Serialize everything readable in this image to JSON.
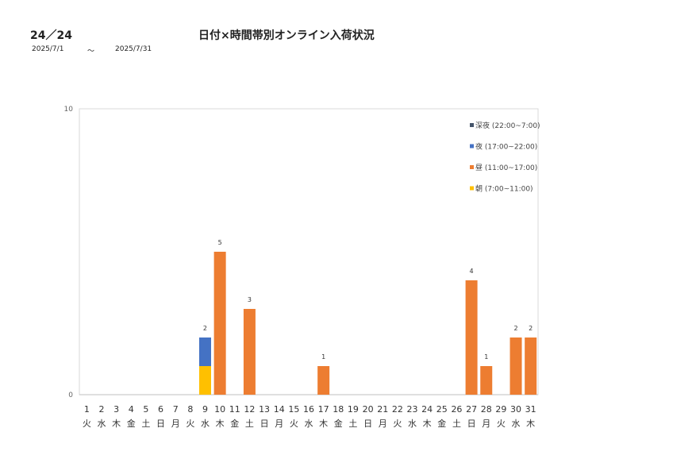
{
  "header": {
    "code": "24／24",
    "title": "日付×時間帯別オンライン入荷状況",
    "date_from": "2025/7/1",
    "tilde": "～",
    "date_to": "2025/7/31"
  },
  "chart_data": {
    "type": "bar",
    "stacked": true,
    "ylim": [
      0,
      10
    ],
    "y_ticks": [
      "0",
      "10"
    ],
    "categories": [
      "1",
      "2",
      "3",
      "4",
      "5",
      "6",
      "7",
      "8",
      "9",
      "10",
      "11",
      "12",
      "13",
      "14",
      "15",
      "16",
      "17",
      "18",
      "19",
      "20",
      "21",
      "22",
      "23",
      "24",
      "25",
      "26",
      "27",
      "28",
      "29",
      "30",
      "31"
    ],
    "weekdays": [
      "火",
      "水",
      "木",
      "金",
      "土",
      "日",
      "月",
      "火",
      "水",
      "木",
      "金",
      "土",
      "日",
      "月",
      "火",
      "水",
      "木",
      "金",
      "土",
      "日",
      "月",
      "火",
      "水",
      "木",
      "金",
      "土",
      "日",
      "月",
      "火",
      "水",
      "木"
    ],
    "series": [
      {
        "name": "朝 (7:00~11:00)",
        "color": "#FFC000",
        "values": [
          0,
          0,
          0,
          0,
          0,
          0,
          0,
          0,
          1,
          0,
          0,
          0,
          0,
          0,
          0,
          0,
          0,
          0,
          0,
          0,
          0,
          0,
          0,
          0,
          0,
          0,
          0,
          0,
          0,
          0,
          0
        ]
      },
      {
        "name": "昼 (11:00~17:00)",
        "color": "#ED7D31",
        "values": [
          0,
          0,
          0,
          0,
          0,
          0,
          0,
          0,
          0,
          5,
          0,
          3,
          0,
          0,
          0,
          0,
          1,
          0,
          0,
          0,
          0,
          0,
          0,
          0,
          0,
          0,
          4,
          1,
          0,
          2,
          2
        ]
      },
      {
        "name": "夜 (17:00~22:00)",
        "color": "#4472C4",
        "values": [
          0,
          0,
          0,
          0,
          0,
          0,
          0,
          0,
          1,
          0,
          0,
          0,
          0,
          0,
          0,
          0,
          0,
          0,
          0,
          0,
          0,
          0,
          0,
          0,
          0,
          0,
          0,
          0,
          0,
          0,
          0
        ]
      },
      {
        "name": "深夜 (22:00~7:00)",
        "color": "#44546A",
        "values": [
          0,
          0,
          0,
          0,
          0,
          0,
          0,
          0,
          0,
          0,
          0,
          0,
          0,
          0,
          0,
          0,
          0,
          0,
          0,
          0,
          0,
          0,
          0,
          0,
          0,
          0,
          0,
          0,
          0,
          0,
          0
        ]
      }
    ],
    "legend_order": [
      "深夜 (22:00~7:00)",
      "夜 (17:00~22:00)",
      "昼 (11:00~17:00)",
      "朝 (7:00~11:00)"
    ],
    "legend_position": "top-right",
    "grid": false
  }
}
